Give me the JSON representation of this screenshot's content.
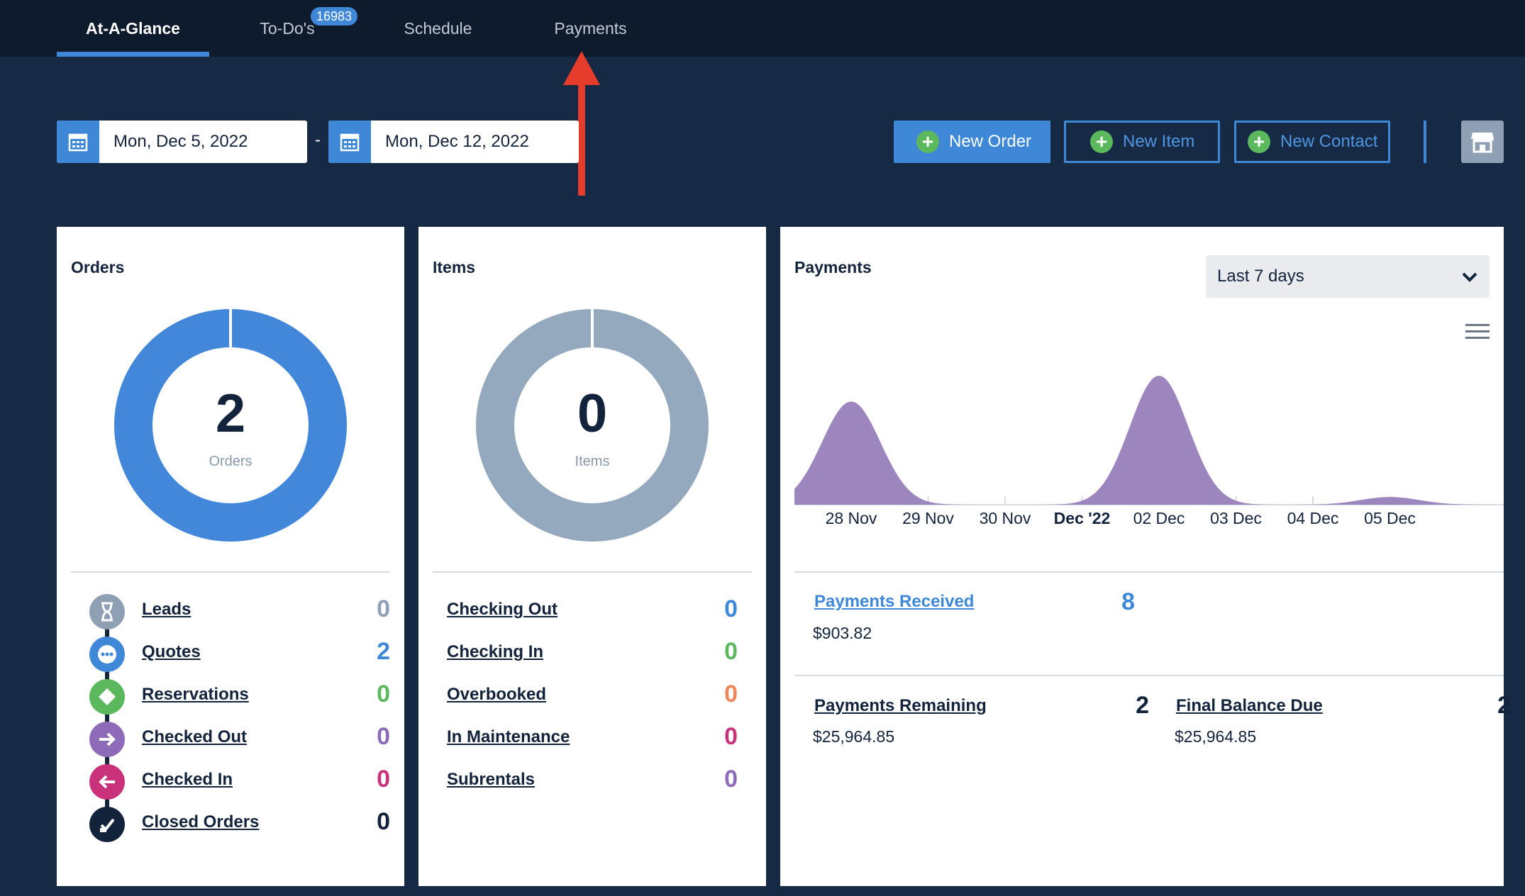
{
  "nav": {
    "tabs": [
      {
        "label": "At-A-Glance"
      },
      {
        "label": "To-Do's",
        "badge": "16983"
      },
      {
        "label": "Schedule"
      },
      {
        "label": "Payments"
      }
    ]
  },
  "dates": {
    "start": "Mon, Dec 5, 2022",
    "separator": "-",
    "end": "Mon, Dec 12, 2022"
  },
  "actions": {
    "new_order": "New Order",
    "new_item": "New Item",
    "new_contact": "New Contact"
  },
  "orders": {
    "title": "Orders",
    "total": "2",
    "total_label": "Orders",
    "stats": [
      {
        "label": "Leads",
        "count": "0",
        "color": "#8fa0b4",
        "icon": "hourglass-icon"
      },
      {
        "label": "Quotes",
        "count": "2",
        "color": "#3f88d8",
        "icon": "quote-icon"
      },
      {
        "label": "Reservations",
        "count": "0",
        "color": "#5cb85c",
        "icon": "tag-icon"
      },
      {
        "label": "Checked Out",
        "count": "0",
        "color": "#8e6bb8",
        "icon": "arrow-right-icon"
      },
      {
        "label": "Checked In",
        "count": "0",
        "color": "#c9327a",
        "icon": "arrow-left-icon"
      },
      {
        "label": "Closed Orders",
        "count": "0",
        "color": "#13233b",
        "icon": "closed-icon"
      }
    ]
  },
  "items": {
    "title": "Items",
    "total": "0",
    "total_label": "Items",
    "stats": [
      {
        "label": "Checking Out",
        "count": "0",
        "color": "#3f88d8"
      },
      {
        "label": "Checking In",
        "count": "0",
        "color": "#5cb85c"
      },
      {
        "label": "Overbooked",
        "count": "0",
        "color": "#f0865a"
      },
      {
        "label": "In Maintenance",
        "count": "0",
        "color": "#c9327a"
      },
      {
        "label": "Subrentals",
        "count": "0",
        "color": "#8e6bb8"
      }
    ]
  },
  "payments": {
    "title": "Payments",
    "range": "Last 7 days",
    "received_label": "Payments Received",
    "received_count": "8",
    "received_amount": "$903.82",
    "remaining_label": "Payments Remaining",
    "remaining_count": "2",
    "remaining_amount": "$25,964.85",
    "final_label": "Final Balance Due",
    "final_count": "2",
    "final_amount": "$25,964.85"
  },
  "colors": {
    "accent": "#3f88d8",
    "navy": "#172a45",
    "chart_fill": "#9d86bd"
  },
  "chart_data": {
    "type": "area",
    "x": [
      "28 Nov",
      "29 Nov",
      "30 Nov",
      "Dec '22",
      "02 Dec",
      "03 Dec",
      "04 Dec",
      "05 Dec"
    ],
    "x_label_bold": "Dec '22",
    "values": [
      {
        "x": "28 Nov",
        "y": 0.8
      },
      {
        "x": "29 Nov",
        "y": 0
      },
      {
        "x": "30 Nov",
        "y": 0
      },
      {
        "x": "Dec '22",
        "y": 0
      },
      {
        "x": "02 Dec",
        "y": 1
      },
      {
        "x": "03 Dec",
        "y": 0
      },
      {
        "x": "04 Dec",
        "y": 0
      },
      {
        "x": "05 Dec",
        "y": 0.06
      }
    ],
    "title": "",
    "xlabel": "",
    "ylabel": "",
    "grid": false,
    "legend": "none"
  }
}
